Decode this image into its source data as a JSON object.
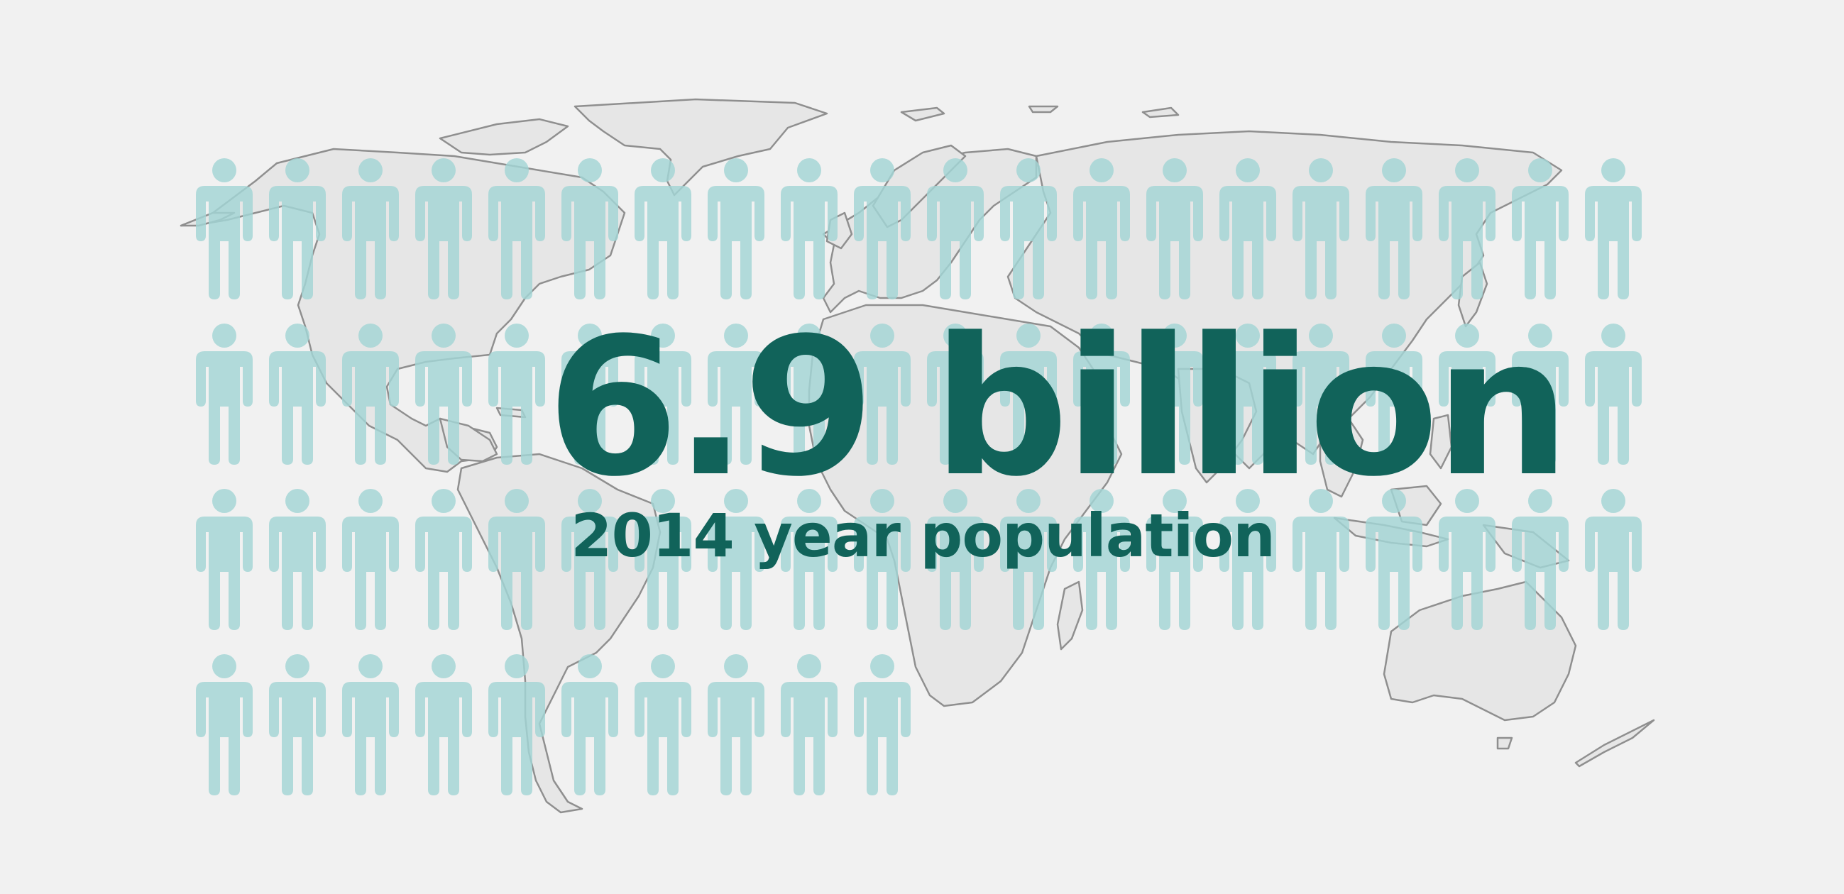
{
  "infographic": {
    "headline": "6.9 billion",
    "subline": "2014 year population"
  },
  "icons": {
    "person": "person-icon",
    "map": "world-map"
  },
  "pictograph": {
    "rows": 4,
    "columns": 20,
    "filled_count": 70
  },
  "colors": {
    "background": "#f1f1f1",
    "land": "#e6e6e6",
    "coastline": "#8f8f8f",
    "person": "#a3d6d6",
    "text": "#11635a"
  }
}
